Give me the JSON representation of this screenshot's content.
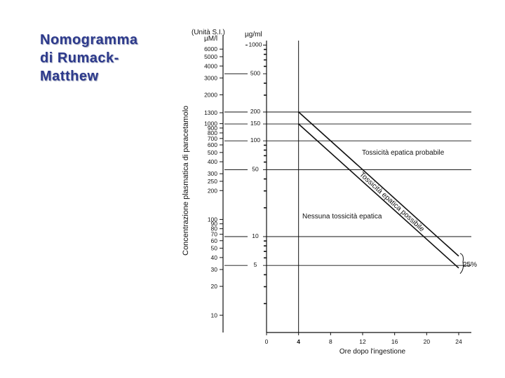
{
  "slide": {
    "title_lines": [
      "Nomogramma",
      "di Rumack-",
      "Matthew"
    ]
  },
  "chart_data": {
    "type": "line",
    "title": "",
    "xlabel": "Ore dopo l'ingestione",
    "ylabel": "Concentrazione plasmatica di paracetamolo",
    "x_ticks": [
      0,
      4,
      8,
      12,
      16,
      20,
      24
    ],
    "xlim": [
      0,
      24
    ],
    "log_scale_y": true,
    "ylim_ug_ml": [
      2,
      1000
    ],
    "units": {
      "si_header": "(Unità S.I.)",
      "si_unit": "µM/l",
      "mass_unit": "µg/ml"
    },
    "si_ticks": [
      6000,
      5000,
      4000,
      3000,
      2000,
      1300,
      1000,
      900,
      800,
      700,
      600,
      500,
      400,
      300,
      250,
      200,
      100,
      90,
      80,
      70,
      60,
      50,
      40,
      30,
      20,
      10
    ],
    "ugml_ticks": [
      1000,
      500,
      200,
      150,
      100,
      50,
      10,
      5
    ],
    "series": [
      {
        "points": [
          [
            4,
            200
          ],
          [
            24,
            6.25
          ]
        ]
      },
      {
        "points": [
          [
            4,
            150
          ],
          [
            24,
            4.7
          ]
        ]
      }
    ],
    "annotations": {
      "probable": "Tossicità epatica probabile",
      "possible": "Tossicità epatica possibile",
      "none": "Nessuna tossicità epatica",
      "margin": "25%"
    },
    "colors": {
      "line": "#111111",
      "title": "#2d3a8c"
    }
  }
}
